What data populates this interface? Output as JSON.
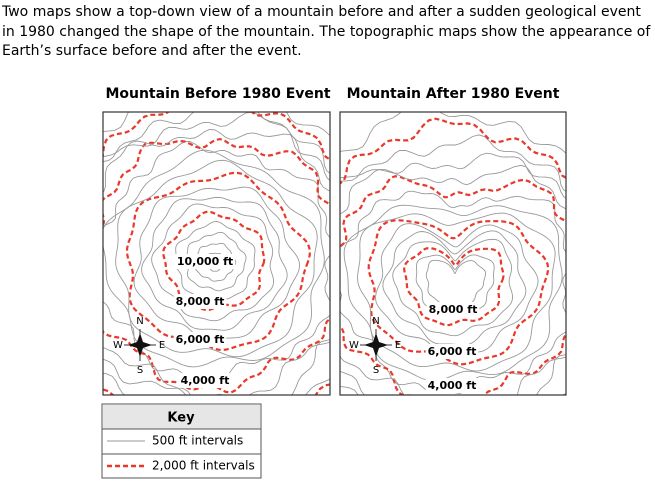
{
  "intro": "Two maps show a top-down view of a mountain before and after a sudden geological event in 1980 changed the shape of the mountain. The topographic maps show the appearance of Earth’s surface before and after the event.",
  "maps": [
    {
      "title": "Mountain Before 1980 Event",
      "labels": [
        "10,000 ft",
        "8,000 ft",
        "6,000 ft",
        "4,000 ft"
      ]
    },
    {
      "title": "Mountain After 1980 Event",
      "labels": [
        "8,000 ft",
        "6,000 ft",
        "4,000 ft"
      ]
    }
  ],
  "compass": {
    "north": "N",
    "south": "S",
    "east": "E",
    "west": "W"
  },
  "key": {
    "title": "Key",
    "rows": [
      "500 ft intervals",
      "2,000 ft intervals"
    ]
  }
}
